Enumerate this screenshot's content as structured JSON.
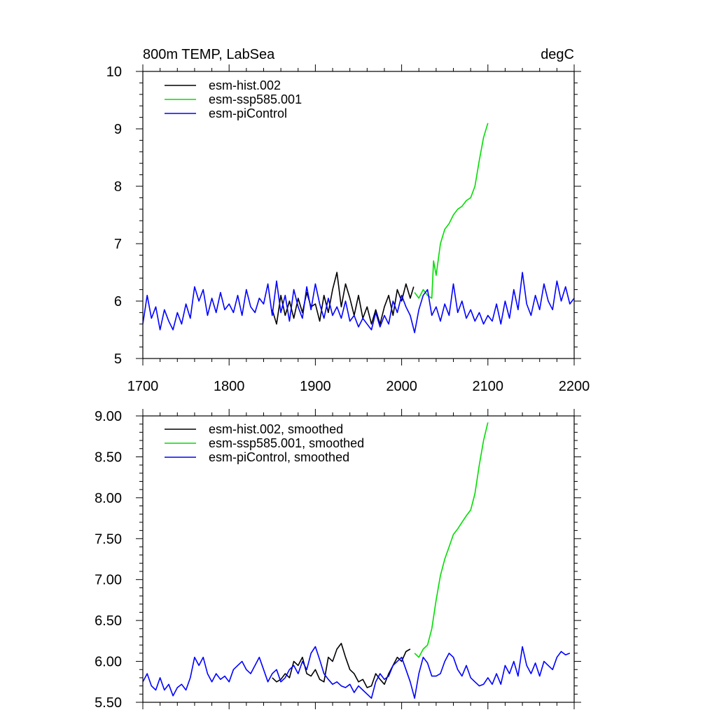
{
  "chart_data": [
    {
      "type": "line",
      "title": "800m TEMP, LabSea",
      "units": "degC",
      "xlabel": "",
      "ylabel": "",
      "xlim": [
        1700,
        2200
      ],
      "ylim": [
        5,
        10
      ],
      "xticks": [
        1700,
        1800,
        1900,
        2000,
        2100,
        2200
      ],
      "xtick_labels": [
        "1700",
        "1800",
        "1900",
        "2000",
        "2100",
        "2200"
      ],
      "yticks": [
        5,
        6,
        7,
        8,
        9,
        10
      ],
      "ytick_labels": [
        "5",
        "6",
        "7",
        "8",
        "9",
        "10"
      ],
      "grid": false,
      "legend_position": "top-left",
      "series": [
        {
          "name": "esm-hist.002",
          "color": "#000000",
          "x": [
            1850,
            1855,
            1860,
            1865,
            1870,
            1875,
            1880,
            1885,
            1890,
            1895,
            1900,
            1905,
            1910,
            1915,
            1920,
            1925,
            1930,
            1935,
            1940,
            1945,
            1950,
            1955,
            1960,
            1965,
            1970,
            1975,
            1980,
            1985,
            1990,
            1995,
            2000,
            2005,
            2010,
            2014
          ],
          "values": [
            5.85,
            5.6,
            6.1,
            5.75,
            6.0,
            5.7,
            6.05,
            5.8,
            6.15,
            5.9,
            5.95,
            5.65,
            6.1,
            5.8,
            6.2,
            6.5,
            5.9,
            6.3,
            6.05,
            5.75,
            6.1,
            5.7,
            5.9,
            5.6,
            5.85,
            5.6,
            5.9,
            6.1,
            5.75,
            6.2,
            6.0,
            6.3,
            6.05,
            6.25
          ]
        },
        {
          "name": "esm-ssp585.001",
          "color": "#00dd00",
          "x": [
            2015,
            2020,
            2025,
            2030,
            2035,
            2037,
            2040,
            2045,
            2050,
            2055,
            2060,
            2065,
            2070,
            2075,
            2080,
            2085,
            2090,
            2095,
            2100
          ],
          "values": [
            6.15,
            6.05,
            6.2,
            6.1,
            6.05,
            6.7,
            6.45,
            7.0,
            7.25,
            7.35,
            7.5,
            7.6,
            7.65,
            7.75,
            7.8,
            8.0,
            8.45,
            8.85,
            9.1
          ]
        },
        {
          "name": "esm-piControl",
          "color": "#0000ff",
          "x": [
            1700,
            1705,
            1710,
            1715,
            1720,
            1725,
            1730,
            1735,
            1740,
            1745,
            1750,
            1755,
            1760,
            1765,
            1770,
            1775,
            1780,
            1785,
            1790,
            1795,
            1800,
            1805,
            1810,
            1815,
            1820,
            1825,
            1830,
            1835,
            1840,
            1845,
            1850,
            1855,
            1860,
            1865,
            1870,
            1875,
            1880,
            1885,
            1890,
            1895,
            1900,
            1905,
            1910,
            1915,
            1920,
            1925,
            1930,
            1935,
            1940,
            1945,
            1950,
            1955,
            1960,
            1965,
            1970,
            1975,
            1980,
            1985,
            1990,
            1995,
            2000,
            2005,
            2010,
            2015,
            2020,
            2025,
            2030,
            2035,
            2040,
            2045,
            2050,
            2055,
            2060,
            2065,
            2070,
            2075,
            2080,
            2085,
            2090,
            2095,
            2100,
            2105,
            2110,
            2115,
            2120,
            2125,
            2130,
            2135,
            2140,
            2145,
            2150,
            2155,
            2160,
            2165,
            2170,
            2175,
            2180,
            2185,
            2190,
            2195,
            2200
          ],
          "values": [
            5.6,
            6.1,
            5.7,
            5.9,
            5.5,
            5.85,
            5.65,
            5.5,
            5.8,
            5.6,
            5.95,
            5.7,
            6.25,
            6.0,
            6.2,
            5.75,
            6.05,
            5.8,
            6.15,
            5.85,
            5.95,
            5.8,
            6.1,
            5.75,
            6.2,
            5.9,
            5.8,
            6.05,
            5.95,
            6.3,
            5.75,
            6.35,
            5.8,
            6.1,
            5.65,
            6.2,
            5.9,
            5.7,
            6.25,
            5.85,
            6.3,
            5.95,
            5.7,
            6.05,
            5.75,
            5.9,
            5.7,
            6.0,
            5.65,
            5.75,
            5.55,
            5.7,
            5.6,
            5.5,
            5.8,
            5.55,
            5.75,
            5.6,
            6.0,
            5.8,
            6.1,
            5.9,
            5.75,
            5.45,
            5.85,
            6.1,
            6.2,
            5.75,
            5.9,
            5.65,
            5.95,
            5.75,
            6.3,
            5.8,
            6.0,
            5.7,
            5.85,
            5.65,
            5.8,
            5.6,
            5.75,
            5.65,
            5.95,
            5.6,
            6.0,
            5.7,
            6.2,
            5.85,
            6.5,
            5.95,
            5.75,
            6.1,
            5.85,
            6.3,
            6.0,
            5.85,
            6.35,
            6.0,
            6.25,
            5.95,
            6.05
          ]
        }
      ]
    },
    {
      "type": "line",
      "title": "",
      "xlabel": "",
      "ylabel": "",
      "xlim": [
        1700,
        2200
      ],
      "ylim": [
        5.5,
        9.0
      ],
      "xticks": [
        1700,
        1800,
        1900,
        2000,
        2100,
        2200
      ],
      "yticks": [
        5.5,
        6.0,
        6.5,
        7.0,
        7.5,
        8.0,
        8.5,
        9.0
      ],
      "ytick_labels": [
        "5.50",
        "6.00",
        "6.50",
        "7.00",
        "7.50",
        "8.00",
        "8.50",
        "9.00"
      ],
      "grid": false,
      "legend_position": "top-left",
      "series": [
        {
          "name": "esm-hist.002, smoothed",
          "color": "#000000",
          "x": [
            1850,
            1855,
            1860,
            1865,
            1870,
            1875,
            1880,
            1885,
            1890,
            1895,
            1900,
            1905,
            1910,
            1915,
            1920,
            1925,
            1930,
            1935,
            1940,
            1945,
            1950,
            1955,
            1960,
            1965,
            1970,
            1975,
            1980,
            1985,
            1990,
            1995,
            2000,
            2005,
            2010
          ],
          "values": [
            5.8,
            5.75,
            5.78,
            5.85,
            5.8,
            6.0,
            5.95,
            6.05,
            5.85,
            5.82,
            5.9,
            5.78,
            5.75,
            6.05,
            6.0,
            6.15,
            6.22,
            6.05,
            5.9,
            5.85,
            5.75,
            5.78,
            5.68,
            5.7,
            5.85,
            5.78,
            5.72,
            5.85,
            5.95,
            6.05,
            6.0,
            6.12,
            6.15
          ]
        },
        {
          "name": "esm-ssp585.001, smoothed",
          "color": "#00dd00",
          "x": [
            2015,
            2020,
            2025,
            2030,
            2035,
            2040,
            2045,
            2050,
            2055,
            2060,
            2065,
            2070,
            2075,
            2080,
            2085,
            2090,
            2095,
            2100
          ],
          "values": [
            6.1,
            6.05,
            6.15,
            6.2,
            6.4,
            6.75,
            7.05,
            7.25,
            7.4,
            7.55,
            7.62,
            7.7,
            7.78,
            7.85,
            8.05,
            8.4,
            8.7,
            8.92
          ]
        },
        {
          "name": "esm-piControl, smoothed",
          "color": "#0000ff",
          "x": [
            1700,
            1705,
            1710,
            1715,
            1720,
            1725,
            1730,
            1735,
            1740,
            1745,
            1750,
            1755,
            1760,
            1765,
            1770,
            1775,
            1780,
            1785,
            1790,
            1795,
            1800,
            1805,
            1810,
            1815,
            1820,
            1825,
            1830,
            1835,
            1840,
            1845,
            1850,
            1855,
            1860,
            1865,
            1870,
            1875,
            1880,
            1885,
            1890,
            1895,
            1900,
            1905,
            1910,
            1915,
            1920,
            1925,
            1930,
            1935,
            1940,
            1945,
            1950,
            1955,
            1960,
            1965,
            1970,
            1975,
            1980,
            1985,
            1990,
            1995,
            2000,
            2005,
            2010,
            2015,
            2020,
            2025,
            2030,
            2035,
            2040,
            2045,
            2050,
            2055,
            2060,
            2065,
            2070,
            2075,
            2080,
            2085,
            2090,
            2095,
            2100,
            2105,
            2110,
            2115,
            2120,
            2125,
            2130,
            2135,
            2140,
            2145,
            2150,
            2155,
            2160,
            2165,
            2170,
            2175,
            2180,
            2185,
            2190,
            2195
          ],
          "values": [
            5.75,
            5.85,
            5.7,
            5.65,
            5.8,
            5.65,
            5.72,
            5.58,
            5.68,
            5.72,
            5.65,
            5.8,
            6.05,
            5.95,
            6.05,
            5.85,
            5.75,
            5.85,
            5.78,
            5.82,
            5.75,
            5.9,
            5.95,
            6.0,
            5.9,
            5.85,
            5.95,
            6.05,
            5.9,
            5.75,
            5.85,
            5.9,
            5.75,
            5.8,
            5.9,
            5.95,
            5.85,
            6.0,
            5.9,
            6.1,
            6.18,
            6.02,
            5.85,
            5.78,
            5.72,
            5.75,
            5.7,
            5.68,
            5.72,
            5.62,
            5.7,
            5.65,
            5.6,
            5.55,
            5.75,
            5.85,
            5.78,
            5.82,
            5.95,
            6.0,
            6.05,
            5.9,
            5.75,
            5.55,
            5.85,
            6.05,
            5.98,
            5.82,
            5.82,
            5.85,
            6.0,
            6.1,
            6.05,
            5.9,
            5.82,
            5.95,
            5.8,
            5.75,
            5.7,
            5.72,
            5.8,
            5.72,
            5.85,
            5.72,
            5.95,
            5.85,
            6.0,
            5.82,
            6.18,
            5.95,
            5.85,
            5.98,
            5.82,
            6.0,
            5.95,
            5.9,
            6.05,
            6.12,
            6.08,
            6.1
          ]
        }
      ]
    }
  ]
}
